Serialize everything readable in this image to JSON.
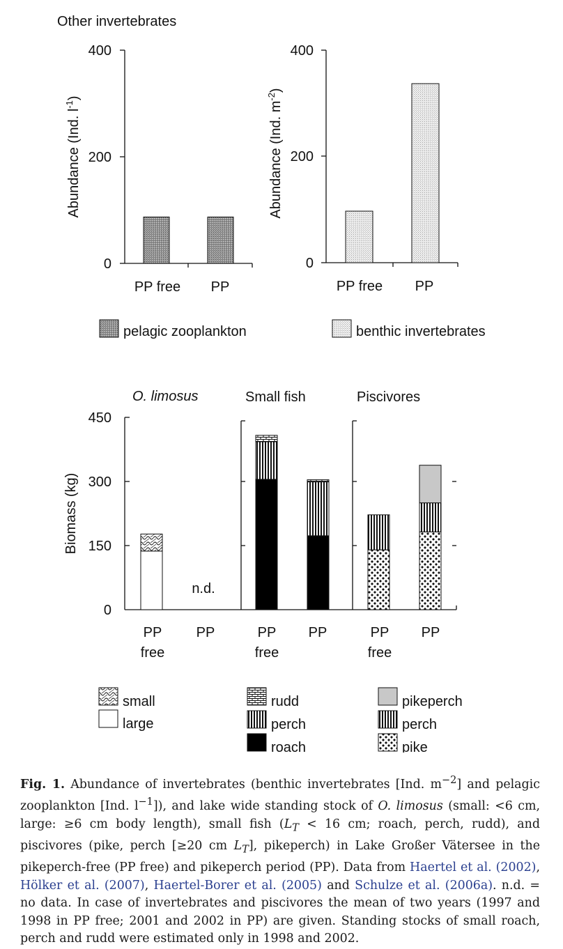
{
  "chart_data": [
    {
      "type": "bar",
      "panel_title": "Other invertebrates",
      "ylabel": "Abundance (Ind. l-1)",
      "ylim": [
        0,
        400
      ],
      "yticks": [
        "0",
        "200",
        "400"
      ],
      "categories": [
        "PP free",
        "PP"
      ],
      "series": [
        {
          "name": "pelagic zooplankton",
          "values": [
            87,
            87
          ]
        }
      ],
      "pattern": "dark-stipple"
    },
    {
      "type": "bar",
      "ylabel": "Abundance (Ind. m-2)",
      "ylim": [
        0,
        400
      ],
      "yticks": [
        "0",
        "200",
        "400"
      ],
      "categories": [
        "PP free",
        "PP"
      ],
      "series": [
        {
          "name": "benthic invertebrates",
          "values": [
            97,
            337
          ]
        }
      ],
      "pattern": "light-stipple"
    },
    {
      "type": "bar",
      "stacked": true,
      "panel_title": "O. limosus",
      "ylabel": "Biomass (kg)",
      "ylim": [
        0,
        450
      ],
      "yticks": [
        "0",
        "150",
        "300",
        "450"
      ],
      "categories": [
        "PP free",
        "PP"
      ],
      "series": [
        {
          "name": "large",
          "values": [
            137,
            null
          ]
        },
        {
          "name": "small",
          "values": [
            40,
            null
          ]
        }
      ],
      "annotations": [
        {
          "category": "PP",
          "text": "n.d."
        }
      ]
    },
    {
      "type": "bar",
      "stacked": true,
      "panel_title": "Small fish",
      "ylim": [
        0,
        450
      ],
      "categories": [
        "PP free",
        "PP"
      ],
      "series": [
        {
          "name": "roach",
          "values": [
            305,
            173
          ]
        },
        {
          "name": "perch",
          "values": [
            88,
            126
          ]
        },
        {
          "name": "rudd",
          "values": [
            15,
            5
          ]
        }
      ]
    },
    {
      "type": "bar",
      "stacked": true,
      "panel_title": "Piscivores",
      "ylim": [
        0,
        450
      ],
      "categories": [
        "PP free",
        "PP"
      ],
      "series": [
        {
          "name": "pike",
          "values": [
            140,
            182
          ]
        },
        {
          "name": "perch",
          "values": [
            82,
            68
          ]
        },
        {
          "name": "pikeperch",
          "values": [
            0,
            88
          ]
        }
      ]
    }
  ],
  "figure": {
    "top_left": {
      "title": "Other invertebrates",
      "ylabel_main": "Abundance (Ind. l",
      "ylabel_sup": "-1",
      "ylabel_end": ")",
      "yticks": [
        "0",
        "200",
        "400"
      ],
      "cat1": "PP free",
      "cat2": "PP",
      "legend": "pelagic zooplankton"
    },
    "top_right": {
      "ylabel_main": "Abundance (Ind. m",
      "ylabel_sup": "-2",
      "ylabel_end": ")",
      "yticks": [
        "0",
        "200",
        "400"
      ],
      "cat1": "PP free",
      "cat2": "PP",
      "legend": "benthic invertebrates"
    },
    "bottom": {
      "ylabel": "Biomass (kg)",
      "yticks": [
        "0",
        "150",
        "300",
        "450"
      ],
      "titles": [
        "O. limosus",
        "Small fish",
        "Piscivores"
      ],
      "cat_pp": "PP",
      "cat_free_line1": "PP",
      "cat_free_line2": "free",
      "nd": "n.d.",
      "legend_limosus": [
        "small",
        "large"
      ],
      "legend_smallfish": [
        "rudd",
        "perch",
        "roach"
      ],
      "legend_piscivores": [
        "pikeperch",
        "perch",
        "pike"
      ]
    }
  },
  "caption": {
    "label": "Fig. 1.",
    "p1": " Abundance of invertebrates (benthic invertebrates [Ind. m",
    "sup1": "−2",
    "p2": "] and pelagic zooplankton [Ind. l",
    "sup2": "−1",
    "p3": "]), and lake wide standing stock of ",
    "species": "O. limosus",
    "p4": " (small: <6 cm, large: ≥6 cm body length), small fish (",
    "lt1": "L",
    "lt1_sub": "T",
    "p5": " < 16 cm; roach, perch, rudd), and piscivores (pike, perch [≥20 cm ",
    "lt2": "L",
    "lt2_sub": "T",
    "p6": "], pikeperch) in Lake Großer Vätersee in the pikeperch-free (PP free) and pikeperch period (PP). Data from ",
    "ref1": "Haertel et al. (2002)",
    "c1": ", ",
    "ref2": "Hölker et al. (2007)",
    "c2": ", ",
    "ref3": "Haertel-Borer et al. (2005)",
    "c3": " and ",
    "ref4": "Schulze et al. (2006a)",
    "p7": ". n.d. = no data. In case of invertebrates and piscivores the mean of two years (1997 and 1998 in PP free; 2001 and 2002 in PP) are given. Standing stocks of small roach, perch and rudd were estimated only in 1998 and 2002."
  },
  "colors": {
    "axis": "#111111",
    "roach": "#000000",
    "pikeperch": "#c8c8c8",
    "large": "#ffffff",
    "reference_link": "#2a3f8f"
  }
}
